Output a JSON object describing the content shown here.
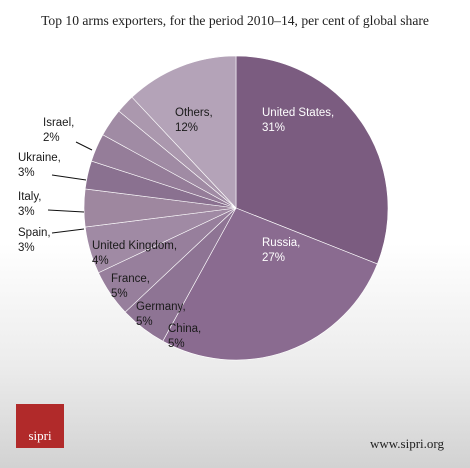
{
  "chart_data": {
    "type": "pie",
    "title": "Top 10 arms exporters, for the period 2010–14, per cent of global share",
    "slices": [
      {
        "label": "United States,",
        "value_text": "31%",
        "value": 31,
        "color": "#7b5c80",
        "text_color": "#ffffff"
      },
      {
        "label": "Russia,",
        "value_text": "27%",
        "value": 27,
        "color": "#8a6b90",
        "text_color": "#ffffff"
      },
      {
        "label": "China,",
        "value_text": "5%",
        "value": 5,
        "color": "#8e7494",
        "text_color": "#1a1a1a"
      },
      {
        "label": "Germany,",
        "value_text": "5%",
        "value": 5,
        "color": "#977f9c",
        "text_color": "#1a1a1a"
      },
      {
        "label": "France,",
        "value_text": "5%",
        "value": 5,
        "color": "#a08aa4",
        "text_color": "#1a1a1a"
      },
      {
        "label": "United Kingdom,",
        "value_text": "4%",
        "value": 4,
        "color": "#9e879f",
        "text_color": "#1a1a1a"
      },
      {
        "label": "Spain,",
        "value_text": "3%",
        "value": 3,
        "color": "#8a7190",
        "text_color": "#1a1a1a"
      },
      {
        "label": "Italy,",
        "value_text": "3%",
        "value": 3,
        "color": "#957d99",
        "text_color": "#1a1a1a"
      },
      {
        "label": "Ukraine,",
        "value_text": "3%",
        "value": 3,
        "color": "#a08ba4",
        "text_color": "#1a1a1a"
      },
      {
        "label": "Israel,",
        "value_text": "2%",
        "value": 2,
        "color": "#ab98ae",
        "text_color": "#1a1a1a"
      },
      {
        "label": "Others,",
        "value_text": "12%",
        "value": 12,
        "color": "#b4a3b8",
        "text_color": "#1a1a1a"
      }
    ]
  },
  "logo_text": "sipri",
  "site_url": "www.sipri.org"
}
